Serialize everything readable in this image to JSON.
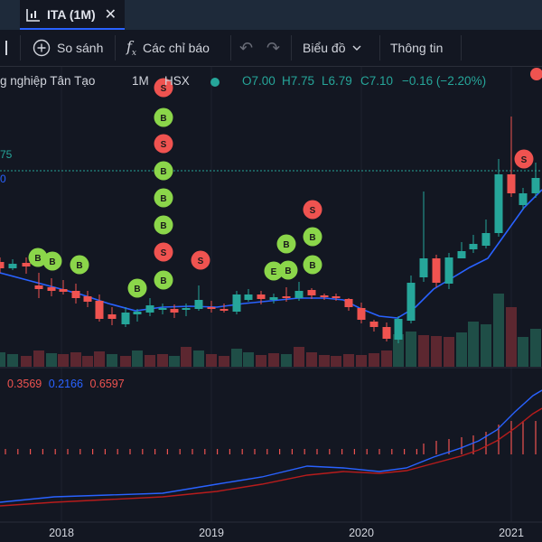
{
  "tab": {
    "title": "ITA (1M)",
    "close": "✕",
    "icon": "candles-icon"
  },
  "toolbar": {
    "compare_label": "So sánh",
    "indicators_label": "Các chỉ báo",
    "chart_label": "Biểu đồ",
    "info_label": "Thông tin",
    "compare_icon": "plus-circle-icon",
    "indicators_icon": "fx-icon",
    "undo_icon": "undo-icon",
    "redo_icon": "redo-icon",
    "chevron_icon": "chevron-down-icon"
  },
  "legend": {
    "name": "g nghiệp Tân Tạo",
    "interval": "1M",
    "exchange": "HSX",
    "open": "O7.00",
    "high": "H7.75",
    "low": "L6.79",
    "close": "C7.10",
    "change": "−0.16 (−2.20%)"
  },
  "side_labels": {
    "upper": "75",
    "lower": "0"
  },
  "indicator_legend": {
    "v1": "0.3569",
    "v2": "0.2166",
    "v3": "0.6597"
  },
  "colors": {
    "up": "#26a69a",
    "down": "#ef5350",
    "ma": "#2962ff",
    "macd": "#2962ff",
    "signal": "#d01f1f",
    "bg": "#131722"
  },
  "chart_data": {
    "type": "candlestick",
    "interval": "1M",
    "x_labels": [
      "2018",
      "2019",
      "2020",
      "2021"
    ],
    "markers": {
      "buy": "B",
      "sell": "S",
      "entry": "E"
    },
    "last_price": 7.1
  }
}
